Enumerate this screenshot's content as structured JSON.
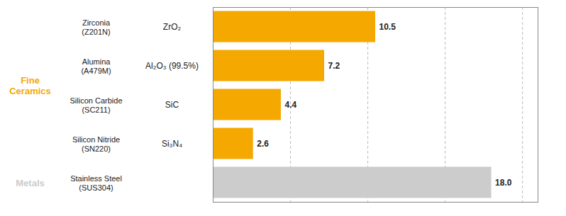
{
  "chart_data": {
    "type": "bar",
    "orientation": "horizontal",
    "categories": [
      "Zirconia\n(Z201N)",
      "Alumina\n(A479M)",
      "Silicon Carbide\n(SC211)",
      "Silicon Nitride\n(SN220)",
      "Stainless Steel\n(SUS304)"
    ],
    "formulas": [
      "ZrO₂",
      "Al₂O₃ (99.5%)",
      "SiC",
      "Si₃N₄",
      null
    ],
    "groups": [
      "Fine\nCeramics",
      "Fine\nCeramics",
      "Fine\nCeramics",
      "Fine\nCeramics",
      "Metals"
    ],
    "values": [
      10.5,
      7.2,
      4.4,
      2.6,
      18.0
    ],
    "value_labels": [
      "10.5",
      "7.2",
      "4.4",
      "2.6",
      "18.0"
    ],
    "colors": [
      "#F5A800",
      "#F5A800",
      "#F5A800",
      "#F5A800",
      "#CCCCCC"
    ],
    "xlim": [
      0,
      21
    ],
    "xticks": [
      5,
      10,
      15,
      20
    ],
    "grid": true,
    "data_labels": true,
    "tick_labels": false
  }
}
